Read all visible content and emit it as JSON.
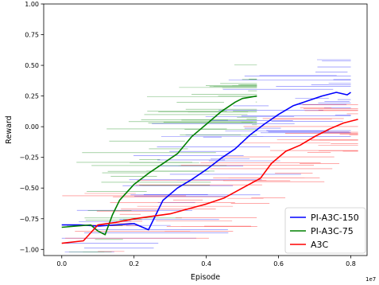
{
  "chart_data": {
    "type": "line",
    "title": "",
    "xlabel": "Episode",
    "ylabel": "Reward",
    "x_exponent_label": "1e7",
    "xlim": [
      -0.05,
      0.845
    ],
    "ylim": [
      -1.05,
      1.0
    ],
    "x_ticks": [
      {
        "value": 0.0,
        "label": "0.0"
      },
      {
        "value": 0.2,
        "label": "0.2"
      },
      {
        "value": 0.4,
        "label": "0.4"
      },
      {
        "value": 0.6,
        "label": "0.6"
      },
      {
        "value": 0.8,
        "label": "0.8"
      }
    ],
    "y_ticks": [
      {
        "value": 1.0,
        "label": "1.00"
      },
      {
        "value": 0.75,
        "label": "0.75"
      },
      {
        "value": 0.5,
        "label": "0.50"
      },
      {
        "value": 0.25,
        "label": "0.25"
      },
      {
        "value": 0.0,
        "label": "0.00"
      },
      {
        "value": -0.25,
        "label": "−0.25"
      },
      {
        "value": -0.5,
        "label": "−0.50"
      },
      {
        "value": -0.75,
        "label": "−0.75"
      },
      {
        "value": -1.0,
        "label": "−1.00"
      }
    ],
    "grid": false,
    "legend_position": "bottom-right",
    "series": [
      {
        "name": "PI-A3C-150",
        "color": "#0000ff",
        "x": [
          0.0,
          0.05,
          0.1,
          0.15,
          0.2,
          0.24,
          0.28,
          0.32,
          0.36,
          0.4,
          0.44,
          0.48,
          0.52,
          0.56,
          0.6,
          0.64,
          0.68,
          0.72,
          0.76,
          0.79,
          0.8
        ],
        "y": [
          -0.8,
          -0.8,
          -0.81,
          -0.8,
          -0.79,
          -0.84,
          -0.6,
          -0.5,
          -0.43,
          -0.35,
          -0.26,
          -0.18,
          -0.07,
          0.02,
          0.1,
          0.17,
          0.21,
          0.25,
          0.28,
          0.26,
          0.28
        ]
      },
      {
        "name": "PI-A3C-75",
        "color": "#008000",
        "x": [
          0.0,
          0.04,
          0.08,
          0.1,
          0.12,
          0.14,
          0.16,
          0.2,
          0.24,
          0.28,
          0.32,
          0.36,
          0.4,
          0.44,
          0.48,
          0.5,
          0.52,
          0.54
        ],
        "y": [
          -0.82,
          -0.81,
          -0.8,
          -0.85,
          -0.88,
          -0.72,
          -0.6,
          -0.47,
          -0.38,
          -0.3,
          -0.22,
          -0.08,
          0.02,
          0.12,
          0.2,
          0.23,
          0.24,
          0.25
        ]
      },
      {
        "name": "A3C",
        "color": "#ff0000",
        "x": [
          0.0,
          0.06,
          0.1,
          0.15,
          0.2,
          0.25,
          0.3,
          0.35,
          0.4,
          0.45,
          0.5,
          0.55,
          0.58,
          0.62,
          0.66,
          0.7,
          0.74,
          0.78,
          0.82
        ],
        "y": [
          -0.95,
          -0.93,
          -0.8,
          -0.78,
          -0.75,
          -0.73,
          -0.71,
          -0.67,
          -0.63,
          -0.58,
          -0.5,
          -0.42,
          -0.3,
          -0.2,
          -0.15,
          -0.08,
          -0.02,
          0.03,
          0.06
        ]
      }
    ]
  }
}
